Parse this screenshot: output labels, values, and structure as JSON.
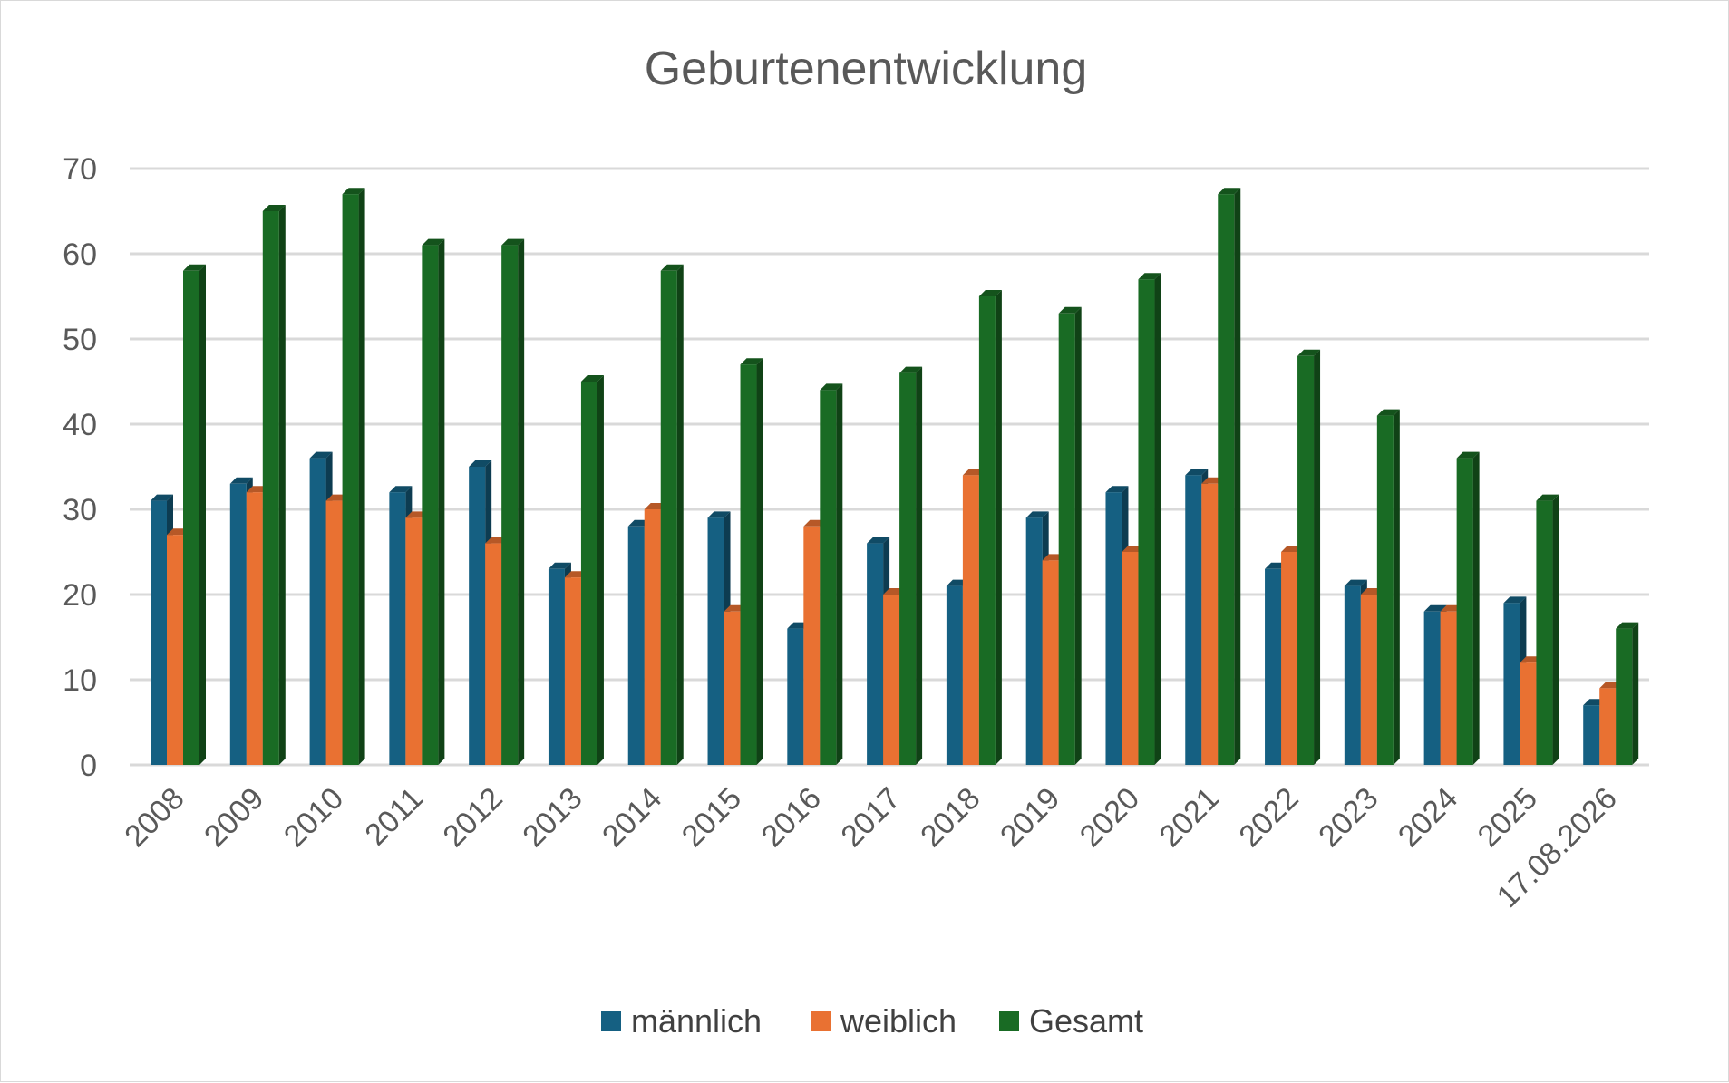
{
  "chart_data": {
    "type": "bar",
    "title": "Geburtenentwicklung",
    "xlabel": "",
    "ylabel": "",
    "ylim": [
      0,
      70
    ],
    "yticks": [
      0,
      10,
      20,
      30,
      40,
      50,
      60,
      70
    ],
    "grid": true,
    "legend": "bottom",
    "categories": [
      "2008",
      "2009",
      "2010",
      "2011",
      "2012",
      "2013",
      "2014",
      "2015",
      "2016",
      "2017",
      "2018",
      "2019",
      "2020",
      "2021",
      "2022",
      "2023",
      "2024",
      "2025",
      "17.08.2026"
    ],
    "series": [
      {
        "name": "männlich",
        "color": "#156082",
        "values": [
          31,
          33,
          36,
          32,
          35,
          23,
          28,
          29,
          16,
          26,
          21,
          29,
          32,
          34,
          23,
          21,
          18,
          19,
          7
        ]
      },
      {
        "name": "weiblich",
        "color": "#E97132",
        "values": [
          27,
          32,
          31,
          29,
          26,
          22,
          30,
          18,
          28,
          20,
          34,
          24,
          25,
          33,
          25,
          20,
          18,
          12,
          9
        ]
      },
      {
        "name": "Gesamt",
        "color": "#196B24",
        "values": [
          58,
          65,
          67,
          61,
          61,
          45,
          58,
          47,
          44,
          46,
          55,
          53,
          57,
          67,
          48,
          41,
          36,
          31,
          16
        ]
      }
    ]
  }
}
